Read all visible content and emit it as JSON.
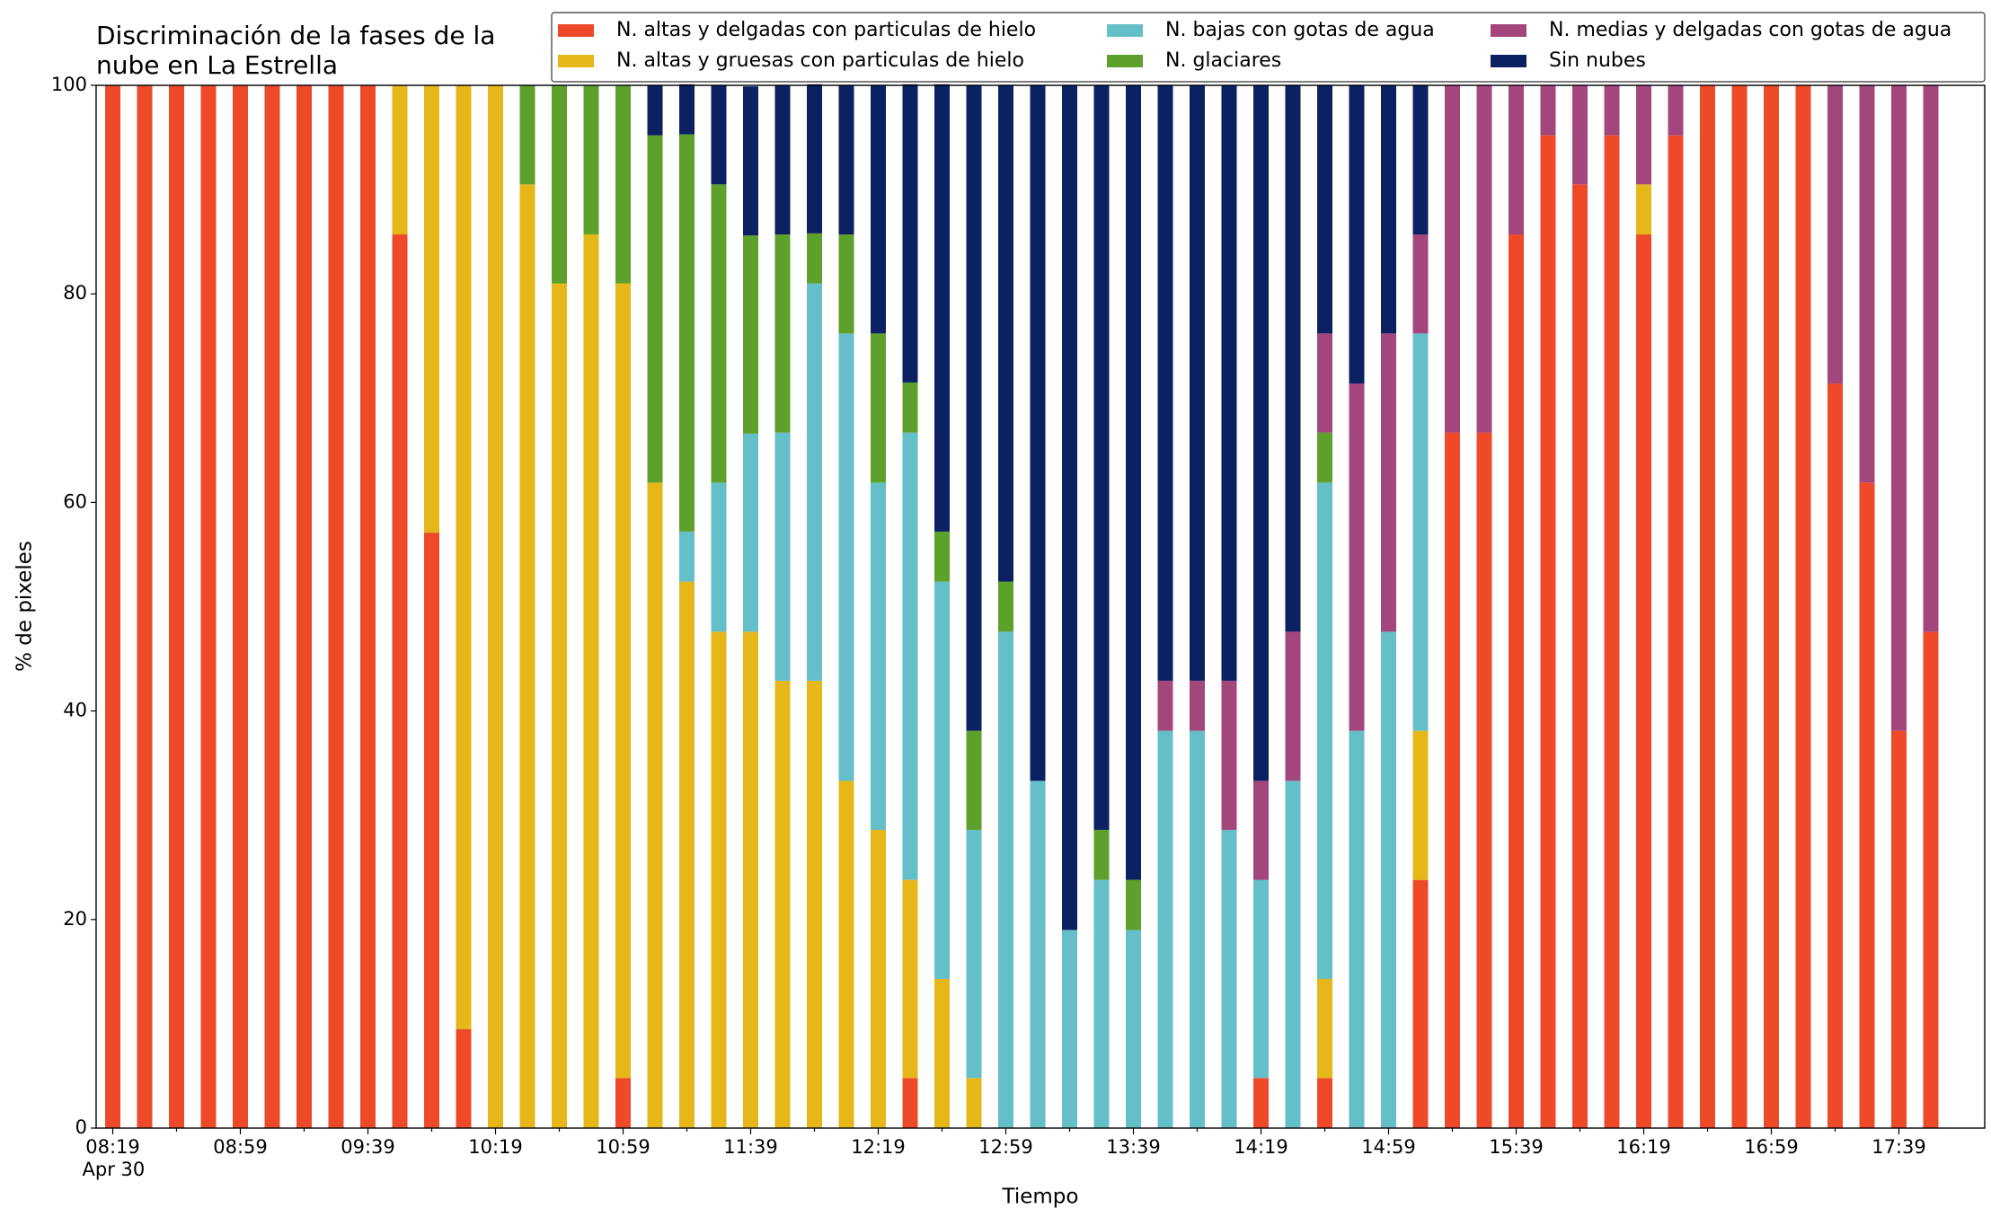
{
  "chart_data": {
    "type": "stacked_bar",
    "title": [
      "Discriminación de la fases de la",
      "nube en La Estrella"
    ],
    "xlabel": "Tiempo",
    "ylabel": "% de pixeles",
    "date_label": "Apr 30",
    "categories": [
      "08:19",
      null,
      null,
      null,
      "08:59",
      null,
      null,
      null,
      "09:39",
      null,
      null,
      null,
      "10:19",
      null,
      null,
      null,
      "10:59",
      null,
      null,
      null,
      "11:39",
      null,
      null,
      null,
      "12:19",
      null,
      null,
      null,
      "12:59",
      null,
      null,
      null,
      "13:39",
      null,
      null,
      null,
      "14:19",
      null,
      null,
      null,
      "14:59",
      null,
      null,
      null,
      "15:39",
      null,
      null,
      null,
      "16:19",
      null,
      null,
      null,
      "16:59",
      null,
      null,
      null,
      "17:39",
      null
    ],
    "ylim": [
      0,
      100
    ],
    "yticks": [
      0,
      20,
      40,
      60,
      80,
      100
    ],
    "series": [
      {
        "name": "N. altas y delgadas con particulas de hielo",
        "color": "#ee4a2a",
        "values": [
          100,
          100,
          100,
          100,
          100,
          100,
          100,
          100,
          100,
          85.7,
          57.1,
          9.5,
          0,
          0,
          0,
          0,
          4.8,
          0,
          0,
          0,
          0,
          0,
          0,
          0,
          0,
          4.8,
          0,
          0,
          0,
          0,
          0,
          0,
          0,
          0,
          0,
          0,
          4.8,
          0,
          4.8,
          0,
          0,
          23.8,
          66.7,
          66.7,
          85.7,
          95.2,
          90.5,
          95.2,
          85.7,
          95.2,
          100,
          100,
          100,
          100,
          71.4,
          61.9,
          38.1,
          47.6
        ]
      },
      {
        "name": "N. altas y gruesas con particulas de hielo",
        "color": "#e5b718",
        "values": [
          0,
          0,
          0,
          0,
          0,
          0,
          0,
          0,
          0,
          14.3,
          42.9,
          90.5,
          100,
          90.5,
          81.0,
          85.7,
          76.2,
          61.9,
          52.4,
          47.6,
          47.6,
          42.9,
          42.9,
          33.3,
          28.6,
          19.0,
          14.3,
          4.8,
          0,
          0,
          0,
          0,
          0,
          0,
          0,
          0,
          0,
          0,
          9.5,
          0,
          0,
          14.3,
          0,
          0,
          0,
          0,
          0,
          0,
          4.8,
          0,
          0,
          0,
          0,
          0,
          0,
          0,
          0,
          0
        ]
      },
      {
        "name": "N. bajas con gotas de agua",
        "color": "#65bfc9",
        "values": [
          0,
          0,
          0,
          0,
          0,
          0,
          0,
          0,
          0,
          0,
          0,
          0,
          0,
          0,
          0,
          0,
          0,
          0,
          4.8,
          14.3,
          19.0,
          23.8,
          38.1,
          42.9,
          33.3,
          42.9,
          38.1,
          23.8,
          47.6,
          33.3,
          19.0,
          23.8,
          19.0,
          38.1,
          38.1,
          28.6,
          19.0,
          33.3,
          47.6,
          38.1,
          47.6,
          38.1,
          0,
          0,
          0,
          0,
          0,
          0,
          0,
          0,
          0,
          0,
          0,
          0,
          0,
          0,
          0,
          0
        ]
      },
      {
        "name": "N. glaciares",
        "color": "#5ea02c",
        "values": [
          0,
          0,
          0,
          0,
          0,
          0,
          0,
          0,
          0,
          0,
          0,
          0,
          0,
          9.5,
          19.0,
          14.3,
          19.0,
          33.3,
          38.1,
          28.6,
          19.0,
          19.0,
          4.8,
          9.5,
          14.3,
          4.8,
          4.8,
          9.5,
          4.8,
          0,
          0,
          4.8,
          4.8,
          0,
          0,
          0,
          0,
          0,
          4.8,
          0,
          0,
          0,
          0,
          0,
          0,
          0,
          0,
          0,
          0,
          0,
          0,
          0,
          0,
          0,
          0,
          0,
          0,
          0
        ]
      },
      {
        "name": "N. medias y delgadas con gotas de agua",
        "color": "#a3467c",
        "values": [
          0,
          0,
          0,
          0,
          0,
          0,
          0,
          0,
          0,
          0,
          0,
          0,
          0,
          0,
          0,
          0,
          0,
          0,
          0,
          0,
          0,
          0,
          0,
          0,
          0,
          0,
          0,
          0,
          0,
          0,
          0,
          0,
          0,
          4.8,
          4.8,
          14.3,
          9.5,
          14.3,
          9.5,
          33.3,
          28.6,
          9.5,
          33.3,
          33.3,
          14.3,
          4.8,
          9.5,
          4.8,
          9.5,
          4.8,
          0,
          0,
          0,
          0,
          28.6,
          38.1,
          61.9,
          52.4
        ]
      },
      {
        "name": "Sin nubes",
        "color": "#0b2162",
        "values": [
          0,
          0,
          0,
          0,
          0,
          0,
          0,
          0,
          0,
          0,
          0,
          0,
          0,
          0,
          0,
          0,
          0,
          4.8,
          4.8,
          9.5,
          14.3,
          14.3,
          14.3,
          14.3,
          23.8,
          28.6,
          42.9,
          61.9,
          47.6,
          66.7,
          81.0,
          71.4,
          76.2,
          57.1,
          57.1,
          57.1,
          66.7,
          52.4,
          23.8,
          28.6,
          23.8,
          14.3,
          0,
          0,
          0,
          0,
          0,
          0,
          0,
          0,
          0,
          0,
          0,
          0,
          0,
          0,
          0,
          0
        ]
      }
    ],
    "legend": "upper right"
  }
}
